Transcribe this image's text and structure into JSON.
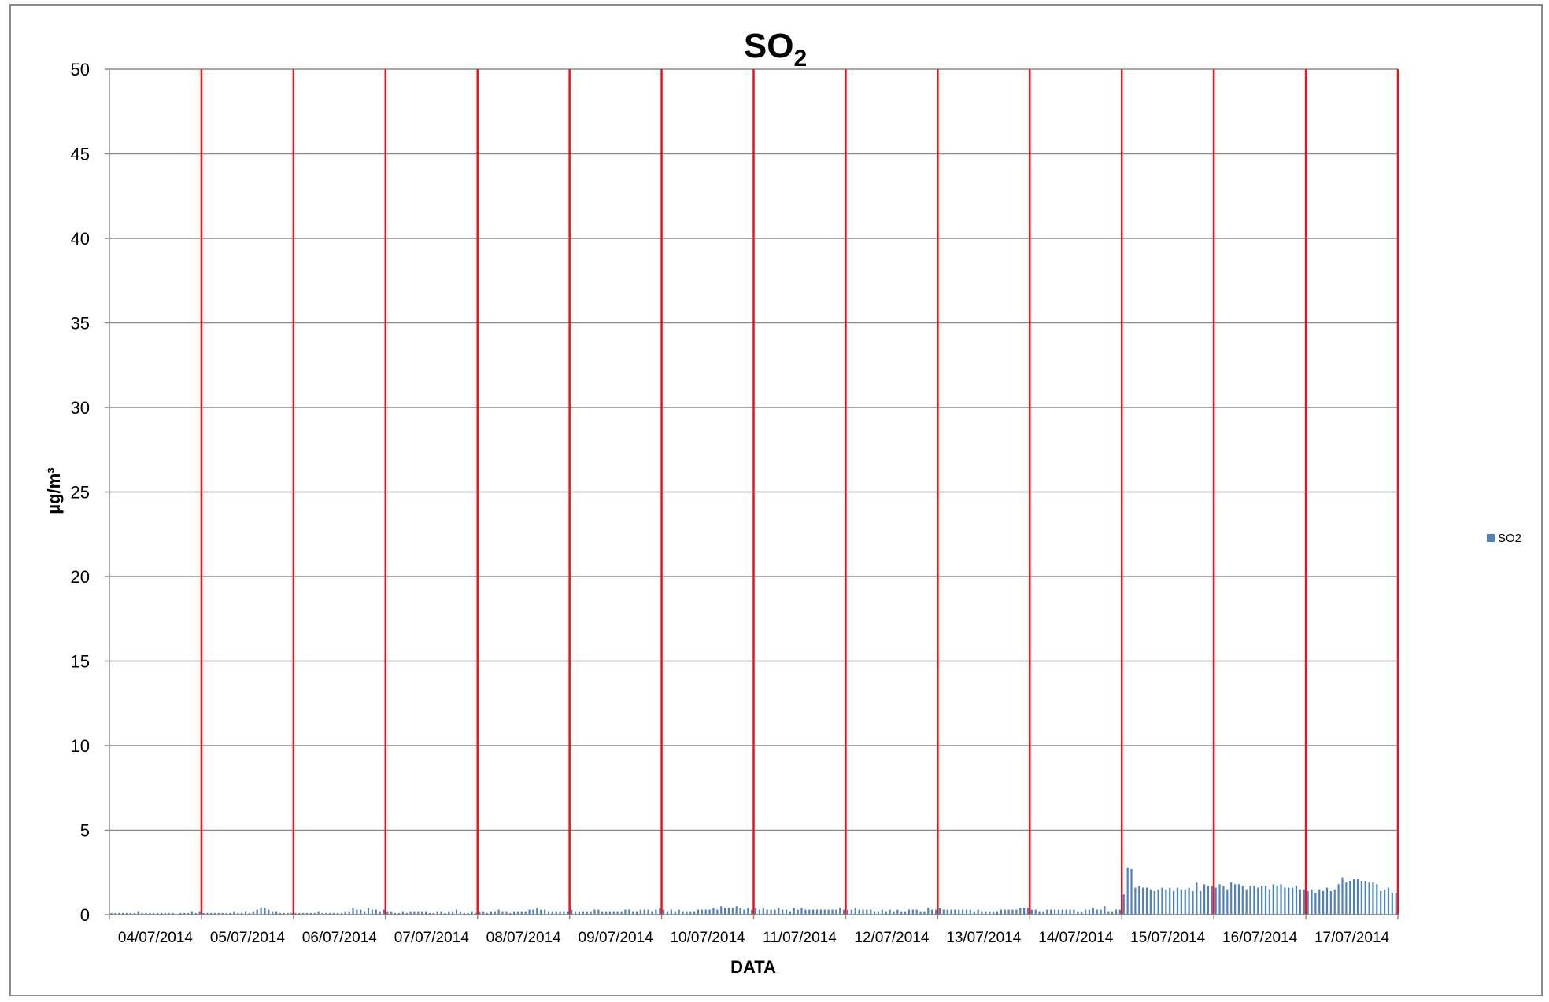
{
  "chart_data": {
    "type": "bar",
    "title": "SO",
    "title_subscript": "2",
    "xlabel": "DATA",
    "ylabel": "µg/m³",
    "ylim": [
      0,
      50
    ],
    "yticks": [
      0,
      5,
      10,
      15,
      20,
      25,
      30,
      35,
      40,
      45,
      50
    ],
    "categories": [
      "04/07/2014",
      "05/07/2014",
      "06/07/2014",
      "07/07/2014",
      "08/07/2014",
      "09/07/2014",
      "10/07/2014",
      "11/07/2014",
      "12/07/2014",
      "13/07/2014",
      "14/07/2014",
      "15/07/2014",
      "16/07/2014",
      "17/07/2014"
    ],
    "grid": true,
    "day_separator_color": "#e8141b",
    "bar_color": "#4f81bd",
    "legend": {
      "position": "right",
      "entries": [
        "SO2"
      ]
    },
    "series": [
      {
        "name": "SO2",
        "hourly_values_by_day": [
          [
            0.1,
            0.1,
            0.1,
            0.1,
            0.1,
            0.1,
            0.1,
            0.2,
            0.1,
            0.1,
            0.1,
            0.1,
            0.1,
            0.1,
            0.1,
            0.1,
            0.1,
            0,
            0.1,
            0.1,
            0.1,
            0.2,
            0.1,
            0.2
          ],
          [
            0.1,
            0.1,
            0.1,
            0.1,
            0.1,
            0.1,
            0.1,
            0.1,
            0.2,
            0.1,
            0.1,
            0.2,
            0.1,
            0.2,
            0.3,
            0.4,
            0.4,
            0.3,
            0.2,
            0.2,
            0.1,
            0.1,
            0.1,
            0.1
          ],
          [
            0.1,
            0.1,
            0.1,
            0.1,
            0.1,
            0.1,
            0.2,
            0.1,
            0.1,
            0.1,
            0.1,
            0.1,
            0.1,
            0.2,
            0.2,
            0.4,
            0.3,
            0.3,
            0.2,
            0.4,
            0.3,
            0.3,
            0.2,
            0.3
          ],
          [
            0.2,
            0.2,
            0.1,
            0.1,
            0.2,
            0.1,
            0.2,
            0.2,
            0.2,
            0.2,
            0.2,
            0.1,
            0.1,
            0.2,
            0.2,
            0.1,
            0.2,
            0.2,
            0.3,
            0.2,
            0.1,
            0.1,
            0.2,
            0.1
          ],
          [
            0.2,
            0.2,
            0.1,
            0.2,
            0.2,
            0.3,
            0.2,
            0.2,
            0.1,
            0.2,
            0.2,
            0.2,
            0.2,
            0.3,
            0.3,
            0.4,
            0.3,
            0.3,
            0.2,
            0.2,
            0.2,
            0.2,
            0.2,
            0.2
          ],
          [
            0.3,
            0.2,
            0.2,
            0.2,
            0.2,
            0.2,
            0.3,
            0.3,
            0.2,
            0.2,
            0.2,
            0.2,
            0.2,
            0.2,
            0.3,
            0.3,
            0.2,
            0.2,
            0.3,
            0.3,
            0.3,
            0.2,
            0.3,
            0.4
          ],
          [
            0.3,
            0.2,
            0.3,
            0.2,
            0.3,
            0.2,
            0.2,
            0.2,
            0.2,
            0.3,
            0.3,
            0.3,
            0.3,
            0.4,
            0.3,
            0.5,
            0.4,
            0.4,
            0.4,
            0.5,
            0.4,
            0.3,
            0.4,
            0.3
          ],
          [
            0.4,
            0.3,
            0.4,
            0.3,
            0.3,
            0.3,
            0.4,
            0.3,
            0.3,
            0.2,
            0.4,
            0.3,
            0.4,
            0.3,
            0.3,
            0.3,
            0.3,
            0.3,
            0.3,
            0.3,
            0.3,
            0.3,
            0.4,
            0.3
          ],
          [
            0.3,
            0.3,
            0.4,
            0.3,
            0.3,
            0.3,
            0.3,
            0.2,
            0.2,
            0.3,
            0.2,
            0.3,
            0.2,
            0.3,
            0.2,
            0.2,
            0.3,
            0.3,
            0.3,
            0.2,
            0.2,
            0.4,
            0.3,
            0.3
          ],
          [
            0.4,
            0.3,
            0.3,
            0.3,
            0.3,
            0.3,
            0.3,
            0.3,
            0.3,
            0.2,
            0.3,
            0.2,
            0.2,
            0.2,
            0.2,
            0.2,
            0.3,
            0.3,
            0.3,
            0.3,
            0.3,
            0.4,
            0.4,
            0.4
          ],
          [
            0.3,
            0.3,
            0.2,
            0.2,
            0.3,
            0.3,
            0.3,
            0.3,
            0.3,
            0.3,
            0.3,
            0.3,
            0.2,
            0.2,
            0.3,
            0.3,
            0.4,
            0.3,
            0.3,
            0.5,
            0.2,
            0.2,
            0.3,
            0.3
          ],
          [
            1.2,
            2.8,
            2.7,
            1.6,
            1.7,
            1.6,
            1.6,
            1.5,
            1.4,
            1.5,
            1.6,
            1.5,
            1.6,
            1.4,
            1.6,
            1.5,
            1.5,
            1.6,
            1.4,
            1.9,
            1.4,
            1.8,
            1.7,
            1.7
          ],
          [
            1.6,
            1.8,
            1.7,
            1.5,
            1.9,
            1.8,
            1.8,
            1.7,
            1.5,
            1.7,
            1.7,
            1.6,
            1.7,
            1.7,
            1.5,
            1.8,
            1.7,
            1.8,
            1.6,
            1.6,
            1.6,
            1.7,
            1.5,
            1.5
          ],
          [
            1.4,
            1.5,
            1.3,
            1.5,
            1.4,
            1.6,
            1.4,
            1.5,
            1.8,
            2.2,
            1.9,
            2.0,
            2.1,
            2.1,
            2.0,
            2.0,
            1.9,
            1.9,
            1.8,
            1.4,
            1.5,
            1.6,
            1.3,
            1.3
          ]
        ]
      }
    ]
  }
}
